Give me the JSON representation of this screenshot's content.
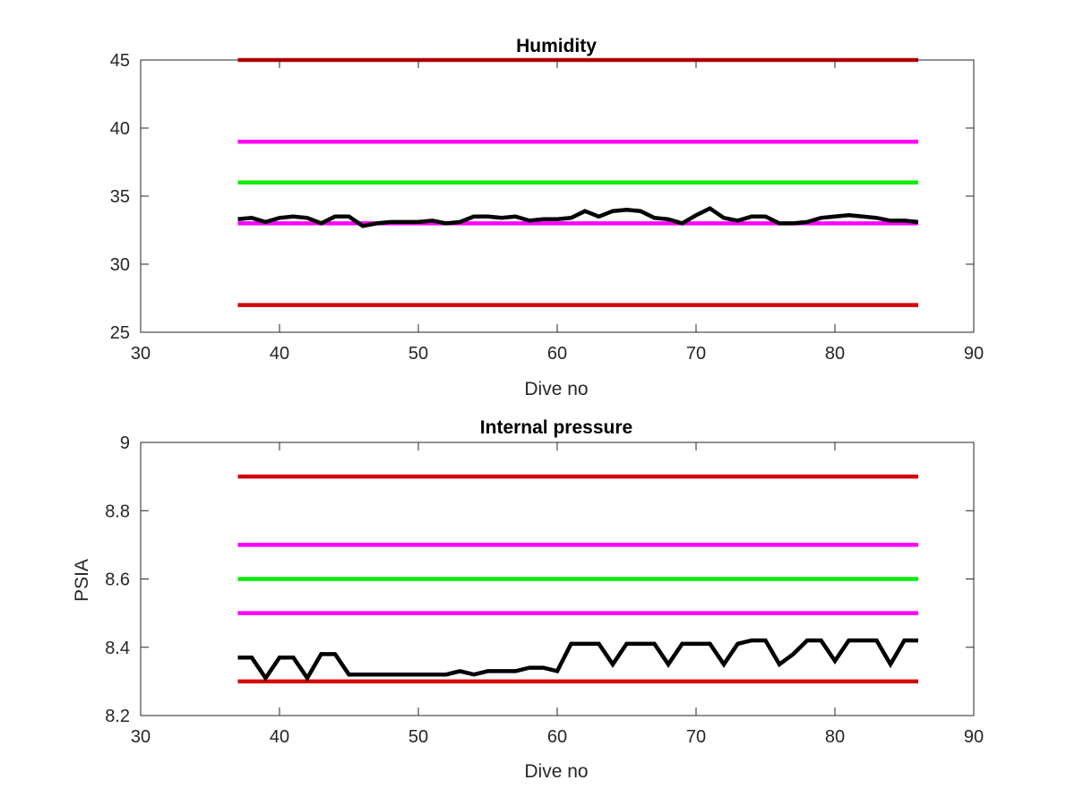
{
  "chart_data": [
    {
      "type": "line",
      "title": "Humidity",
      "xlabel": "Dive no",
      "ylabel": "",
      "xlim": [
        30,
        90
      ],
      "ylim": [
        25,
        45
      ],
      "xticks": [
        30,
        40,
        50,
        60,
        70,
        80,
        90
      ],
      "yticks": [
        25,
        30,
        35,
        40,
        45
      ],
      "grid": false,
      "colors": {
        "red": "#d40000",
        "magenta": "#ff00ff",
        "green": "#00ee00",
        "black": "#000000"
      },
      "reference_lines": [
        {
          "y": 45,
          "color": "#d40000"
        },
        {
          "y": 39,
          "color": "#ff00ff"
        },
        {
          "y": 36,
          "color": "#00ee00"
        },
        {
          "y": 33,
          "color": "#ff00ff"
        },
        {
          "y": 27,
          "color": "#d40000"
        }
      ],
      "reference_x_range": [
        37,
        86
      ],
      "series": [
        {
          "color": "#000000",
          "x": [
            37,
            38,
            39,
            40,
            41,
            42,
            43,
            44,
            45,
            46,
            47,
            48,
            49,
            50,
            51,
            52,
            53,
            54,
            55,
            56,
            57,
            58,
            59,
            60,
            61,
            62,
            63,
            64,
            65,
            66,
            67,
            68,
            69,
            70,
            71,
            72,
            73,
            74,
            75,
            76,
            77,
            78,
            79,
            80,
            81,
            82,
            83,
            84,
            85,
            86
          ],
          "values": [
            33.3,
            33.4,
            33.1,
            33.4,
            33.5,
            33.4,
            33.0,
            33.5,
            33.5,
            32.8,
            33.0,
            33.1,
            33.1,
            33.1,
            33.2,
            33.0,
            33.1,
            33.5,
            33.5,
            33.4,
            33.5,
            33.2,
            33.3,
            33.3,
            33.4,
            33.9,
            33.5,
            33.9,
            34.0,
            33.9,
            33.4,
            33.3,
            33.0,
            33.6,
            34.1,
            33.4,
            33.2,
            33.5,
            33.5,
            33.0,
            33.0,
            33.1,
            33.4,
            33.5,
            33.6,
            33.5,
            33.4,
            33.2,
            33.2,
            33.1
          ]
        }
      ]
    },
    {
      "type": "line",
      "title": "Internal pressure",
      "xlabel": "Dive no",
      "ylabel": "PSIA",
      "xlim": [
        30,
        90
      ],
      "ylim": [
        8.2,
        9.0
      ],
      "xticks": [
        30,
        40,
        50,
        60,
        70,
        80,
        90
      ],
      "yticks": [
        8.2,
        8.4,
        8.6,
        8.8,
        9
      ],
      "ytick_labels": [
        "8.2",
        "8.4",
        "8.6",
        "8.8",
        "9"
      ],
      "grid": false,
      "colors": {
        "red": "#d40000",
        "magenta": "#ff00ff",
        "green": "#00ee00",
        "black": "#000000"
      },
      "reference_lines": [
        {
          "y": 8.9,
          "color": "#d40000"
        },
        {
          "y": 8.7,
          "color": "#ff00ff"
        },
        {
          "y": 8.6,
          "color": "#00ee00"
        },
        {
          "y": 8.5,
          "color": "#ff00ff"
        },
        {
          "y": 8.3,
          "color": "#d40000"
        }
      ],
      "reference_x_range": [
        37,
        86
      ],
      "series": [
        {
          "color": "#000000",
          "x": [
            37,
            38,
            39,
            40,
            41,
            42,
            43,
            44,
            45,
            46,
            47,
            48,
            49,
            50,
            51,
            52,
            53,
            54,
            55,
            56,
            57,
            58,
            59,
            60,
            61,
            62,
            63,
            64,
            65,
            66,
            67,
            68,
            69,
            70,
            71,
            72,
            73,
            74,
            75,
            76,
            77,
            78,
            79,
            80,
            81,
            82,
            83,
            84,
            85,
            86
          ],
          "values": [
            8.37,
            8.37,
            8.31,
            8.37,
            8.37,
            8.31,
            8.38,
            8.38,
            8.32,
            8.32,
            8.32,
            8.32,
            8.32,
            8.32,
            8.32,
            8.32,
            8.33,
            8.32,
            8.33,
            8.33,
            8.33,
            8.34,
            8.34,
            8.33,
            8.41,
            8.41,
            8.41,
            8.35,
            8.41,
            8.41,
            8.41,
            8.35,
            8.41,
            8.41,
            8.41,
            8.35,
            8.41,
            8.42,
            8.42,
            8.35,
            8.38,
            8.42,
            8.42,
            8.36,
            8.42,
            8.42,
            8.42,
            8.35,
            8.42,
            8.42
          ]
        }
      ]
    }
  ]
}
